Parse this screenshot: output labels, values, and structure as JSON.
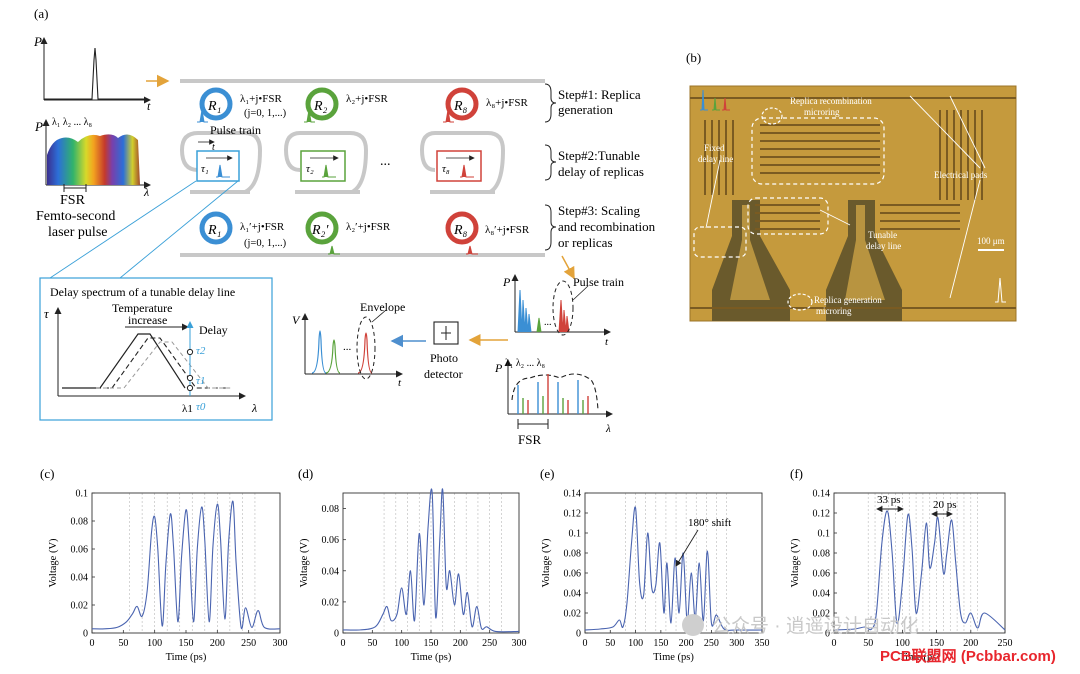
{
  "panel_labels": {
    "a": "(a)",
    "b": "(b)",
    "c": "(c)",
    "d": "(d)",
    "e": "(e)",
    "f": "(f)"
  },
  "schematic": {
    "p_axis": "P",
    "t_axis": "t",
    "lambda_axis": "λ",
    "v_axis": "V",
    "tau_axis": "τ",
    "fsr": "FSR",
    "laser_caption_1": "Femto-second",
    "laser_caption_2": "laser pulse",
    "lambda_series": "λ₁ λ₂ ... λ₈",
    "resonators_top": [
      {
        "name": "R₁",
        "label": "λ₁+j•FSR",
        "color": "#3b8fd4"
      },
      {
        "name": "R₂",
        "label": "λ₂+j•FSR",
        "color": "#5aa33c"
      },
      {
        "name": "R₈",
        "label": "λ₈+j•FSR",
        "color": "#d0423a"
      }
    ],
    "j_range": "(j=0, 1,...)",
    "pulse_train": "Pulse train",
    "delays": [
      "τ₁",
      "τ₂",
      "τ₈"
    ],
    "ellipsis": "...",
    "resonators_bottom": [
      {
        "name": "R₁",
        "label": "λ₁′+j•FSR"
      },
      {
        "name": "R₂′",
        "label": "λ₂′+j•FSR"
      },
      {
        "name": "R₈",
        "label": "λ₈′+j•FSR"
      }
    ],
    "steps": [
      {
        "title": "Step#1: Replica",
        "sub": "generation"
      },
      {
        "title": "Step#2:Tunable",
        "sub": "delay of replicas"
      },
      {
        "title": "Step#3: Scaling",
        "sub": "and recombination",
        "sub2": "or replicas"
      }
    ],
    "inset": {
      "title": "Delay spectrum of a tunable delay line",
      "temperature": "Temperature",
      "increase": "increase",
      "delay": "Delay",
      "tau2": "τ2",
      "tau1": "τ1",
      "tau0": "τ0",
      "lambda1": "λ1"
    },
    "envelope": "Envelope",
    "photo": "Photo",
    "detector": "detector",
    "pulse_train_out": "Pulse train"
  },
  "micrograph": {
    "replica_recombination_1": "Replica recombination",
    "replica_recombination_2": "microring",
    "fixed_delay_1": "Fixed",
    "fixed_delay_2": "delay line",
    "electrical_pads": "Electrical pads",
    "tunable_1": "Tunable",
    "tunable_2": "delay line",
    "scale": "100 μm",
    "replica_generation_1": "Replica generation",
    "replica_generation_2": "microring"
  },
  "annotations": {
    "shift": "180° shift",
    "width33": "33 ps",
    "width20": "20 ps"
  },
  "watermark": "公众号 · 逍遥设计自动化",
  "footer_brand": "PCB联盟网 (Pcbbar.com)",
  "chart_data": [
    {
      "id": "c",
      "type": "line",
      "xlabel": "Time (ps)",
      "ylabel": "Voltage (V)",
      "xlim": [
        0,
        300
      ],
      "ylim": [
        0,
        0.1
      ],
      "xticks": [
        0,
        50,
        100,
        150,
        200,
        250,
        300
      ],
      "yticks": [
        0,
        0.02,
        0.04,
        0.06,
        0.08,
        0.1
      ],
      "ytick_labels": [
        "0",
        "0.02",
        "0.04",
        "0.06",
        "0.08",
        "0.1"
      ],
      "x": [
        0,
        20,
        40,
        55,
        65,
        72,
        80,
        88,
        95,
        100,
        105,
        112,
        118,
        125,
        130,
        137,
        143,
        150,
        155,
        162,
        168,
        175,
        180,
        187,
        193,
        200,
        205,
        212,
        218,
        225,
        230,
        238,
        245,
        255,
        265,
        275,
        300
      ],
      "y": [
        0.003,
        0.003,
        0.004,
        0.008,
        0.014,
        0.019,
        0.012,
        0.03,
        0.072,
        0.083,
        0.06,
        0.005,
        0.05,
        0.085,
        0.062,
        0.008,
        0.055,
        0.088,
        0.064,
        0.008,
        0.06,
        0.09,
        0.066,
        0.008,
        0.062,
        0.092,
        0.068,
        0.01,
        0.065,
        0.094,
        0.05,
        0.004,
        0.018,
        0.004,
        0.016,
        0.004,
        0.003
      ],
      "grid_x": [
        60,
        80,
        100,
        120,
        140,
        160,
        180,
        200,
        220,
        240,
        260
      ]
    },
    {
      "id": "d",
      "type": "line",
      "xlabel": "Time (ps)",
      "ylabel": "Voltage (V)",
      "xlim": [
        0,
        300
      ],
      "ylim": [
        0,
        0.09
      ],
      "xticks": [
        0,
        50,
        100,
        150,
        200,
        250,
        300
      ],
      "yticks": [
        0,
        0.02,
        0.04,
        0.06,
        0.08
      ],
      "ytick_labels": [
        "0",
        "0.02",
        "0.04",
        "0.06",
        "0.08"
      ],
      "x": [
        0,
        30,
        55,
        68,
        75,
        82,
        92,
        100,
        108,
        115,
        122,
        130,
        138,
        145,
        152,
        158,
        165,
        170,
        176,
        182,
        190,
        197,
        205,
        212,
        220,
        228,
        236,
        245,
        260,
        300
      ],
      "y": [
        0.002,
        0.002,
        0.004,
        0.012,
        0.017,
        0.008,
        0.012,
        0.029,
        0.012,
        0.04,
        0.008,
        0.064,
        0.018,
        0.068,
        0.09,
        0.01,
        0.06,
        0.092,
        0.03,
        0.04,
        0.018,
        0.038,
        0.012,
        0.026,
        0.004,
        0.017,
        0.003,
        0.004,
        0.001,
        0.001
      ],
      "grid_x": [
        70,
        90,
        110,
        130,
        150,
        170,
        190,
        210,
        230,
        250,
        270
      ]
    },
    {
      "id": "e",
      "type": "line",
      "xlabel": "Time (ps)",
      "ylabel": "Voltage (V)",
      "xlim": [
        0,
        350
      ],
      "ylim": [
        0,
        0.14
      ],
      "xticks": [
        0,
        50,
        100,
        150,
        200,
        250,
        300,
        350
      ],
      "yticks": [
        0,
        0.02,
        0.04,
        0.06,
        0.08,
        0.1,
        0.12,
        0.14
      ],
      "ytick_labels": [
        "0",
        "0.02",
        "0.04",
        "0.06",
        "0.08",
        "0.1",
        "0.12",
        "0.14"
      ],
      "x": [
        0,
        30,
        55,
        68,
        75,
        83,
        92,
        100,
        108,
        116,
        124,
        132,
        140,
        148,
        156,
        162,
        170,
        178,
        186,
        194,
        202,
        210,
        218,
        226,
        234,
        242,
        250,
        260,
        275,
        300,
        350
      ],
      "y": [
        0.003,
        0.004,
        0.006,
        0.013,
        0.006,
        0.03,
        0.09,
        0.125,
        0.05,
        0.038,
        0.1,
        0.045,
        0.048,
        0.09,
        0.02,
        0.07,
        0.01,
        0.075,
        0.02,
        0.08,
        0.012,
        0.06,
        0.015,
        0.07,
        0.012,
        0.082,
        0.01,
        0.018,
        0.004,
        0.003,
        0.003
      ],
      "grid_x": [
        80,
        100,
        120,
        140,
        160,
        180,
        200,
        220,
        240,
        260,
        280
      ]
    },
    {
      "id": "f",
      "type": "line",
      "xlabel": "Time (ps)",
      "ylabel": "Voltage (V)",
      "xlim": [
        0,
        250
      ],
      "ylim": [
        0,
        0.14
      ],
      "xticks": [
        0,
        50,
        100,
        150,
        200,
        250
      ],
      "yticks": [
        0,
        0.02,
        0.04,
        0.06,
        0.08,
        0.1,
        0.12,
        0.14
      ],
      "ytick_labels": [
        "0",
        "0.02",
        "0.04",
        "0.06",
        "0.08",
        "0.1",
        "0.12",
        "0.14"
      ],
      "x": [
        0,
        30,
        45,
        55,
        62,
        70,
        78,
        85,
        92,
        100,
        108,
        114,
        120,
        128,
        135,
        140,
        147,
        152,
        160,
        165,
        172,
        178,
        185,
        192,
        200,
        210,
        220,
        250
      ],
      "y": [
        0.003,
        0.004,
        0.006,
        0.004,
        0.02,
        0.09,
        0.122,
        0.08,
        0.01,
        0.05,
        0.118,
        0.085,
        0.02,
        0.06,
        0.11,
        0.065,
        0.09,
        0.115,
        0.06,
        0.08,
        0.113,
        0.07,
        0.02,
        0.01,
        0.02,
        0.005,
        0.02,
        0.003
      ],
      "grid_x": [
        50,
        60,
        70,
        80,
        90,
        100,
        110,
        120,
        130,
        140,
        150,
        160,
        170,
        180,
        190,
        200,
        210
      ]
    }
  ]
}
